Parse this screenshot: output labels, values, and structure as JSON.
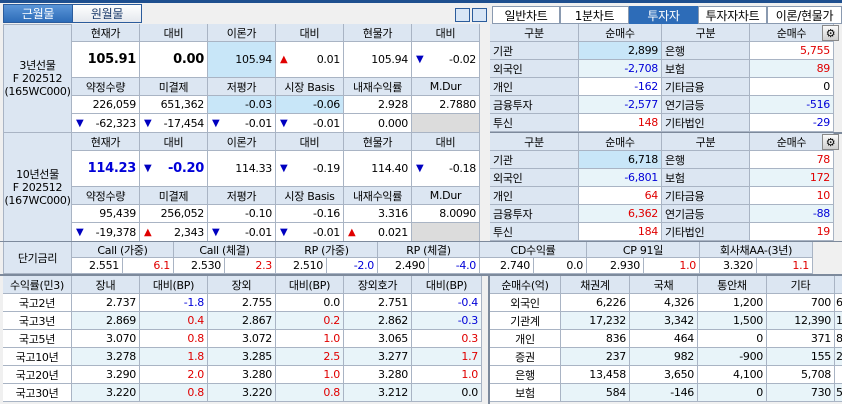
{
  "colors": {
    "accent": "#2d6cb8",
    "up": "#e00000",
    "down": "#0000d8",
    "header_bg": "#dce6f2",
    "highlight_bg": "#c8e6f8"
  },
  "month_toggle": [
    {
      "label": "근월물",
      "selected": true
    },
    {
      "label": "원월물",
      "selected": false
    }
  ],
  "layout_icons": [
    "split-horizontal-icon",
    "split-vertical-icon"
  ],
  "tabs": [
    {
      "label": "일반차트",
      "selected": false
    },
    {
      "label": "1분차트",
      "selected": false
    },
    {
      "label": "투자자",
      "selected": true
    },
    {
      "label": "투자자차트",
      "selected": false
    },
    {
      "label": "이론/현물가",
      "selected": false
    }
  ],
  "futures": [
    {
      "label": [
        "3년선물",
        "F 202512",
        "(165WC000)"
      ],
      "headers1": [
        "현재가",
        "대비",
        "이론가",
        "대비",
        "현물가",
        "대비"
      ],
      "main": [
        {
          "v": "105.91",
          "big": true
        },
        {
          "v": "0.00",
          "big": true
        },
        {
          "v": "105.94",
          "hl": true
        },
        {
          "v": "0.01",
          "dir": "up"
        },
        {
          "v": "105.94"
        },
        {
          "v": "-0.02",
          "dir": "down"
        }
      ],
      "headers2": [
        "약정수량",
        "미결제",
        "저평가",
        "시장 Basis",
        "내재수익률",
        "M.Dur"
      ],
      "values": [
        {
          "v": "226,059"
        },
        {
          "v": "651,362"
        },
        {
          "v": "-0.03",
          "hl": true
        },
        {
          "v": "-0.06",
          "hl": true
        },
        {
          "v": "2.928"
        },
        {
          "v": "2.7880"
        }
      ],
      "diffs": [
        {
          "v": "-62,323",
          "dir": "down"
        },
        {
          "v": "-17,454",
          "dir": "down"
        },
        {
          "v": "-0.01",
          "dir": "down"
        },
        {
          "v": "-0.01",
          "dir": "down"
        },
        {
          "v": "0.000"
        },
        null
      ]
    },
    {
      "label": [
        "10년선물",
        "F 202512",
        "(167WC000)"
      ],
      "headers1": [
        "현재가",
        "대비",
        "이론가",
        "대비",
        "현물가",
        "대비"
      ],
      "main": [
        {
          "v": "114.23",
          "big": true,
          "color": "blue"
        },
        {
          "v": "-0.20",
          "big": true,
          "color": "blue",
          "dir": "down"
        },
        {
          "v": "114.33"
        },
        {
          "v": "-0.19",
          "dir": "down"
        },
        {
          "v": "114.40"
        },
        {
          "v": "-0.18",
          "dir": "down"
        }
      ],
      "headers2": [
        "약정수량",
        "미결제",
        "저평가",
        "시장 Basis",
        "내재수익률",
        "M.Dur"
      ],
      "values": [
        {
          "v": "95,439"
        },
        {
          "v": "256,052"
        },
        {
          "v": "-0.10"
        },
        {
          "v": "-0.16"
        },
        {
          "v": "3.316"
        },
        {
          "v": "8.0090"
        }
      ],
      "diffs": [
        {
          "v": "-19,378",
          "dir": "down"
        },
        {
          "v": "2,343",
          "dir": "up"
        },
        {
          "v": "-0.01",
          "dir": "down"
        },
        {
          "v": "-0.01",
          "dir": "down"
        },
        {
          "v": "0.021",
          "dir": "up"
        },
        null
      ]
    }
  ],
  "short_rates": {
    "label": "단기금리",
    "items": [
      {
        "name": "Call (가중)",
        "rate": "2.551",
        "chg": "6.1"
      },
      {
        "name": "Call (체결)",
        "rate": "2.530",
        "chg": "2.3"
      },
      {
        "name": "RP (가중)",
        "rate": "2.510",
        "chg": "-2.0"
      },
      {
        "name": "RP (체결)",
        "rate": "2.490",
        "chg": "-4.0"
      },
      {
        "name": "CD수익률",
        "rate": "2.740",
        "chg": "0.0"
      },
      {
        "name": "CP 91일",
        "rate": "2.930",
        "chg": "1.0"
      },
      {
        "name": "회사채AA-(3년)",
        "rate": "3.320",
        "chg": "1.1"
      }
    ]
  },
  "investors": [
    {
      "headers": [
        "구분",
        "순매수",
        "구분",
        "순매수"
      ],
      "rows": [
        [
          "기관",
          "2,899",
          "은행",
          "5,755"
        ],
        [
          "외국인",
          "-2,708",
          "보험",
          "89"
        ],
        [
          "개인",
          "-162",
          "기타금융",
          "0"
        ],
        [
          "금융투자",
          "-2,577",
          "연기금등",
          "-516"
        ],
        [
          "투신",
          "148",
          "기타법인",
          "-29"
        ]
      ]
    },
    {
      "headers": [
        "구분",
        "순매수",
        "구분",
        "순매수"
      ],
      "rows": [
        [
          "기관",
          "6,718",
          "은행",
          "78"
        ],
        [
          "외국인",
          "-6,801",
          "보험",
          "172"
        ],
        [
          "개인",
          "64",
          "기타금융",
          "10"
        ],
        [
          "금융투자",
          "6,362",
          "연기금등",
          "-88"
        ],
        [
          "투신",
          "184",
          "기타법인",
          "19"
        ]
      ]
    }
  ],
  "yields": {
    "headers": [
      "수익률(민3)",
      "장내",
      "대비(BP)",
      "장외",
      "대비(BP)",
      "장외호가",
      "대비(BP)"
    ],
    "rows": [
      [
        "국고2년",
        "2.737",
        "-1.8",
        "2.755",
        "0.0",
        "2.751",
        "-0.4"
      ],
      [
        "국고3년",
        "2.869",
        "0.4",
        "2.867",
        "0.2",
        "2.862",
        "-0.3"
      ],
      [
        "국고5년",
        "3.070",
        "0.8",
        "3.072",
        "1.0",
        "3.065",
        "0.3"
      ],
      [
        "국고10년",
        "3.278",
        "1.8",
        "3.285",
        "2.5",
        "3.277",
        "1.7"
      ],
      [
        "국고20년",
        "3.290",
        "2.0",
        "3.280",
        "1.0",
        "3.280",
        "1.0"
      ],
      [
        "국고30년",
        "3.220",
        "0.8",
        "3.220",
        "0.8",
        "3.212",
        "0.0"
      ]
    ]
  },
  "net_buy": {
    "headers": [
      "순매수(억)",
      "채권계",
      "국채",
      "통안채",
      "기타",
      ""
    ],
    "rows": [
      [
        "외국인",
        "6,226",
        "4,326",
        "1,200",
        "700",
        "6"
      ],
      [
        "기관계",
        "17,232",
        "3,342",
        "1,500",
        "12,390",
        "1"
      ],
      [
        "개인",
        "836",
        "464",
        "0",
        "371",
        "8"
      ],
      [
        "증권",
        "237",
        "982",
        "-900",
        "155",
        "2"
      ],
      [
        "은행",
        "13,458",
        "3,650",
        "4,100",
        "5,708",
        ""
      ],
      [
        "보험",
        "584",
        "-146",
        "0",
        "730",
        "5"
      ]
    ]
  }
}
